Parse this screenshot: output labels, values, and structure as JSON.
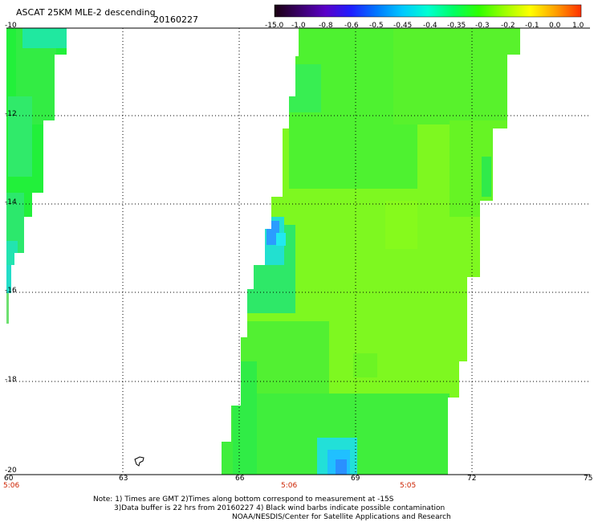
{
  "header": {
    "title": "ASCAT 25KM MLE-2 descending",
    "date": "20160227"
  },
  "colorbar": {
    "labels": [
      "-15.0",
      "-1.0",
      "-0.8",
      "-0.6",
      "-0.5",
      "-0.45",
      "-0.4",
      "-0.35",
      "-0.3",
      "-0.2",
      "-0.1",
      "0.0",
      "1.0"
    ],
    "colors": [
      "#1a0010",
      "#3a006a",
      "#5a00c8",
      "#1e1eff",
      "#0078ff",
      "#00c8ff",
      "#00ffd2",
      "#00ff64",
      "#30ff00",
      "#9cff00",
      "#ffff00",
      "#ffa000",
      "#ff3000"
    ]
  },
  "map": {
    "lat_labels": [
      "-10",
      "-12",
      "-14",
      "-16",
      "-18",
      "-20"
    ],
    "lon_labels": [
      "60",
      "63",
      "66",
      "69",
      "72",
      "75"
    ],
    "time_labels": [
      "5:06",
      "5:06",
      "5:05"
    ]
  },
  "notes": {
    "line1": "Note: 1) Times are GMT 2)Times along bottom correspond to measurement at -15S",
    "line2": "3)Data buffer is 22 hrs from 20160227 4) Black wind barbs indicate possible contamination",
    "line3": "NOAA/NESDIS/Center for Satellite Applications and Research"
  }
}
